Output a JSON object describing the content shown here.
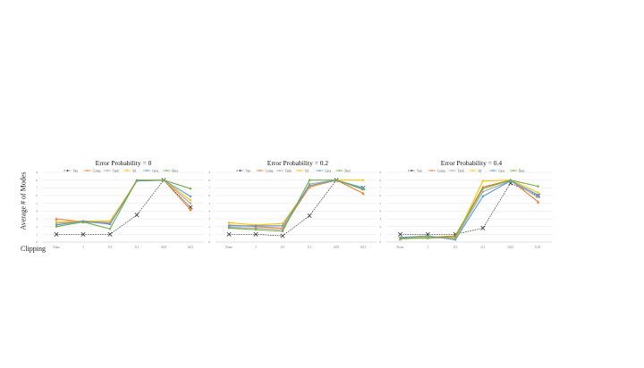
{
  "figure": {
    "ylabel": "Average # of Modes",
    "xlabel": "Clipping"
  },
  "legend_labels": [
    "Van",
    "Comp",
    "Tanh",
    "Sd",
    "Gess",
    "Best"
  ],
  "series_styles": [
    {
      "name": "Van",
      "color": "#333333",
      "dash": true,
      "marker": "x"
    },
    {
      "name": "Comp",
      "color": "#ed7d31",
      "dash": false,
      "marker": "triangle"
    },
    {
      "name": "Tanh",
      "color": "#a5a5a5",
      "dash": false,
      "marker": "circle"
    },
    {
      "name": "Sd",
      "color": "#ffc000",
      "dash": false,
      "marker": "circle"
    },
    {
      "name": "Gess",
      "color": "#5b9bd5",
      "dash": false,
      "marker": "circle"
    },
    {
      "name": "Best",
      "color": "#70ad47",
      "dash": false,
      "marker": "circle"
    }
  ],
  "chart_data": [
    {
      "type": "line",
      "title": "Error Probability = 0",
      "categories": [
        "None",
        "1",
        "0.5",
        "0.1",
        "0.05",
        "0.01"
      ],
      "ylim": [
        0,
        9
      ],
      "yticks": [
        0,
        1,
        2,
        3,
        4,
        5,
        6,
        7,
        8,
        9
      ],
      "grid": true,
      "legend_position": "top",
      "series": [
        {
          "name": "Van",
          "values": [
            1.0,
            1.0,
            1.0,
            3.5,
            8.0,
            4.5
          ]
        },
        {
          "name": "Comp",
          "values": [
            3.0,
            2.6,
            2.4,
            8.0,
            8.0,
            4.2
          ]
        },
        {
          "name": "Tanh",
          "values": [
            2.4,
            2.7,
            2.5,
            7.9,
            8.0,
            5.0
          ]
        },
        {
          "name": "Sd",
          "values": [
            2.6,
            2.7,
            2.7,
            7.9,
            8.0,
            5.4
          ]
        },
        {
          "name": "Gess",
          "values": [
            2.2,
            2.7,
            2.3,
            7.9,
            8.0,
            5.9
          ]
        },
        {
          "name": "Best",
          "values": [
            2.0,
            2.6,
            1.7,
            8.0,
            8.0,
            6.9
          ]
        }
      ]
    },
    {
      "type": "line",
      "title": "Error Probability = 0.2",
      "categories": [
        "None",
        "1",
        "0.5",
        "0.1",
        "0.05",
        "0.01"
      ],
      "ylim": [
        0,
        9
      ],
      "yticks": [
        0,
        1,
        2,
        3,
        4,
        5,
        6,
        7,
        8,
        9
      ],
      "grid": true,
      "legend_position": "top",
      "series": [
        {
          "name": "Van",
          "values": [
            1.0,
            1.0,
            0.8,
            3.4,
            8.0,
            7.0
          ]
        },
        {
          "name": "Comp",
          "values": [
            2.2,
            2.0,
            1.8,
            7.1,
            8.0,
            6.3
          ]
        },
        {
          "name": "Tanh",
          "values": [
            1.9,
            1.8,
            1.6,
            7.5,
            8.0,
            6.9
          ]
        },
        {
          "name": "Sd",
          "values": [
            2.5,
            2.2,
            2.4,
            7.2,
            8.0,
            8.0
          ]
        },
        {
          "name": "Gess",
          "values": [
            2.1,
            2.1,
            2.1,
            7.3,
            8.0,
            7.0
          ]
        },
        {
          "name": "Best",
          "values": [
            1.8,
            1.6,
            1.4,
            8.0,
            8.0,
            6.8
          ]
        }
      ]
    },
    {
      "type": "line",
      "title": "Error Probability = 0.4",
      "categories": [
        "None",
        "1",
        "0.5",
        "0.1",
        "0.05",
        "0.01"
      ],
      "ylim": [
        0,
        9
      ],
      "yticks": [
        0,
        1,
        2,
        3,
        4,
        5,
        6,
        7,
        8,
        9
      ],
      "grid": true,
      "legend_position": "top",
      "series": [
        {
          "name": "Van",
          "values": [
            1.0,
            1.0,
            1.0,
            1.8,
            7.6,
            6.0
          ]
        },
        {
          "name": "Comp",
          "values": [
            0.4,
            0.6,
            0.8,
            7.1,
            8.0,
            5.2
          ]
        },
        {
          "name": "Tanh",
          "values": [
            0.4,
            0.6,
            0.5,
            6.5,
            7.9,
            5.8
          ]
        },
        {
          "name": "Sd",
          "values": [
            0.5,
            0.7,
            0.4,
            7.9,
            8.0,
            6.4
          ]
        },
        {
          "name": "Gess",
          "values": [
            0.6,
            0.8,
            0.3,
            5.9,
            7.9,
            6.1
          ]
        },
        {
          "name": "Best",
          "values": [
            0.5,
            0.5,
            0.7,
            6.9,
            8.0,
            7.2
          ]
        }
      ]
    }
  ]
}
